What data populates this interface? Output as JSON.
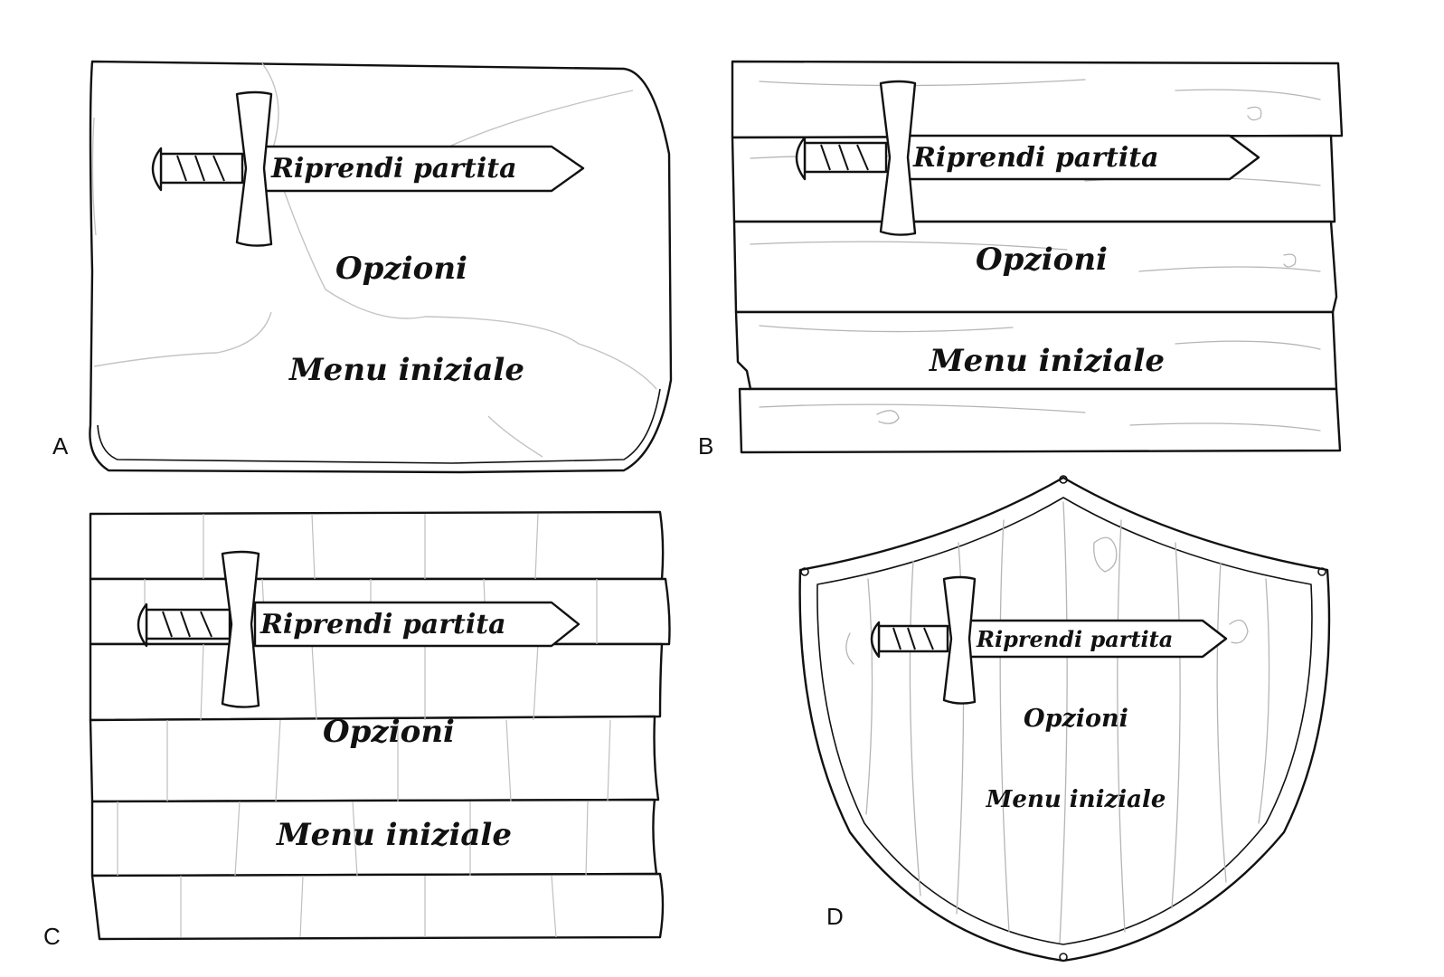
{
  "variants": [
    {
      "letter": "A",
      "material": "stone",
      "items": [
        "Riprendi partita",
        "Opzioni",
        "Menu iniziale"
      ]
    },
    {
      "letter": "B",
      "material": "wood planks",
      "items": [
        "Riprendi partita",
        "Opzioni",
        "Menu iniziale"
      ]
    },
    {
      "letter": "C",
      "material": "brick wall",
      "items": [
        "Riprendi partita",
        "Opzioni",
        "Menu iniziale"
      ]
    },
    {
      "letter": "D",
      "material": "wooden shield",
      "items": [
        "Riprendi partita",
        "Opzioni",
        "Menu iniziale"
      ]
    }
  ],
  "icons": {
    "sword": "sword-icon"
  },
  "colors": {
    "ink": "#111111",
    "background": "#ffffff",
    "texture": "#b5b5b5"
  }
}
